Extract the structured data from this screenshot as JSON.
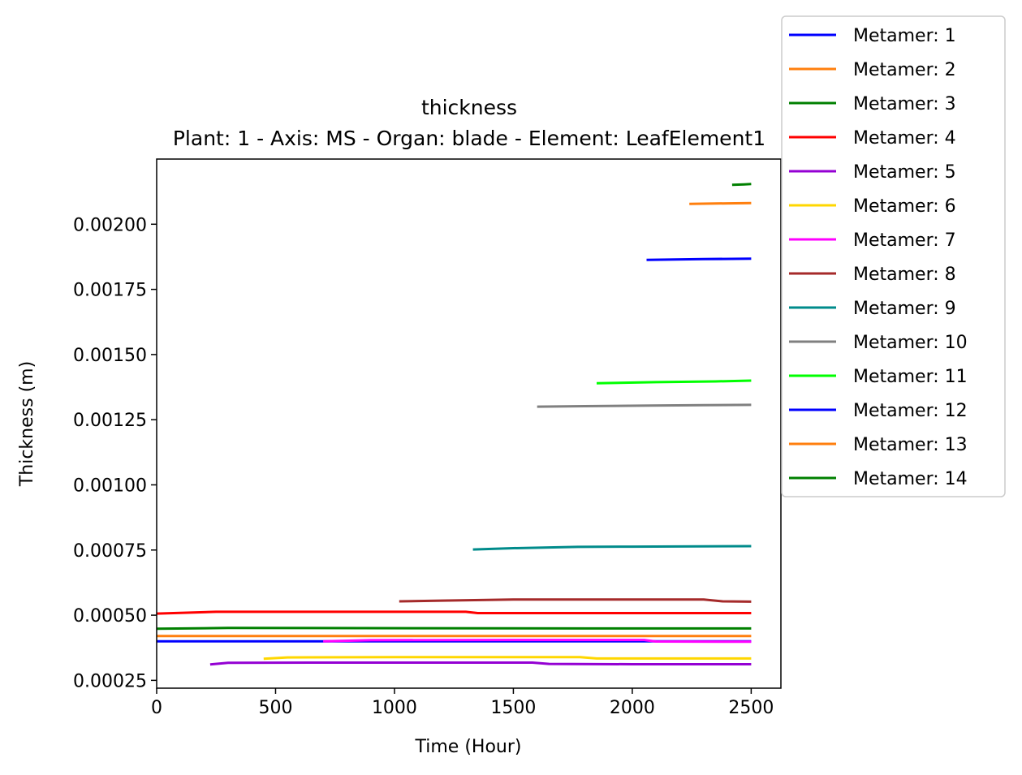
{
  "chart_data": {
    "type": "line",
    "title": "thickness",
    "subtitle": "Plant: 1 - Axis: MS - Organ: blade - Element: LeafElement1",
    "xlabel": "Time (Hour)",
    "ylabel": "Thickness (m)",
    "xlim": [
      0,
      2625
    ],
    "ylim": [
      0.00022,
      0.00225
    ],
    "xticks": [
      0,
      500,
      1000,
      1500,
      2000,
      2500
    ],
    "xtick_labels": [
      "0",
      "500",
      "1000",
      "1500",
      "2000",
      "2500"
    ],
    "yticks": [
      0.00025,
      0.0005,
      0.00075,
      0.001,
      0.00125,
      0.0015,
      0.00175,
      0.002
    ],
    "ytick_labels": [
      "0.00025",
      "0.00050",
      "0.00075",
      "0.00100",
      "0.00125",
      "0.00150",
      "0.00175",
      "0.00200"
    ],
    "grid": false,
    "legend": "outside-top-right",
    "series": [
      {
        "name": "Metamer: 1",
        "color": "#0000ff",
        "x": [
          0,
          700,
          1500,
          2000,
          2500
        ],
        "y": [
          0.0004,
          0.0004,
          0.0004,
          0.0004,
          0.0004
        ]
      },
      {
        "name": "Metamer: 2",
        "color": "#ff7f0e",
        "x": [
          0,
          700,
          1500,
          2000,
          2500
        ],
        "y": [
          0.00042,
          0.00042,
          0.00042,
          0.00042,
          0.00042
        ]
      },
      {
        "name": "Metamer: 3",
        "color": "#008000",
        "x": [
          0,
          300,
          1100,
          1800,
          2500
        ],
        "y": [
          0.000448,
          0.000451,
          0.00045,
          0.000449,
          0.000449
        ]
      },
      {
        "name": "Metamer: 4",
        "color": "#ff0000",
        "x": [
          0,
          250,
          500,
          1000,
          1300,
          1350,
          2000,
          2500
        ],
        "y": [
          0.000506,
          0.000513,
          0.000513,
          0.000513,
          0.000513,
          0.000508,
          0.000508,
          0.000508
        ]
      },
      {
        "name": "Metamer: 5",
        "color": "#9400d3",
        "x": [
          225,
          300,
          700,
          1500,
          1580,
          1650,
          2000,
          2500
        ],
        "y": [
          0.000311,
          0.000317,
          0.000318,
          0.000318,
          0.000318,
          0.000313,
          0.000312,
          0.000312
        ]
      },
      {
        "name": "Metamer: 6",
        "color": "#ffd700",
        "x": [
          450,
          550,
          1000,
          1700,
          1780,
          1850,
          2500
        ],
        "y": [
          0.000333,
          0.000338,
          0.000339,
          0.000339,
          0.000339,
          0.000334,
          0.000334
        ]
      },
      {
        "name": "Metamer: 7",
        "color": "#ff00ff",
        "x": [
          700,
          900,
          1500,
          2050,
          2100,
          2500
        ],
        "y": [
          0.0004,
          0.000404,
          0.000405,
          0.000405,
          0.000399,
          0.000398
        ]
      },
      {
        "name": "Metamer: 8",
        "color": "#a52a2a",
        "x": [
          1020,
          1200,
          1500,
          2000,
          2300,
          2380,
          2500
        ],
        "y": [
          0.000553,
          0.000556,
          0.00056,
          0.00056,
          0.00056,
          0.000553,
          0.000552
        ]
      },
      {
        "name": "Metamer: 9",
        "color": "#008b8b",
        "x": [
          1330,
          1500,
          1770,
          2000,
          2500
        ],
        "y": [
          0.000752,
          0.000757,
          0.000762,
          0.000763,
          0.000765
        ]
      },
      {
        "name": "Metamer: 10",
        "color": "#808080",
        "x": [
          1600,
          1800,
          2080,
          2300,
          2500
        ],
        "y": [
          0.0013,
          0.001302,
          0.001304,
          0.001306,
          0.001307
        ]
      },
      {
        "name": "Metamer: 11",
        "color": "#00ff00",
        "x": [
          1850,
          2100,
          2350,
          2500
        ],
        "y": [
          0.00139,
          0.001394,
          0.001397,
          0.0014
        ]
      },
      {
        "name": "Metamer: 12",
        "color": "#0000ff",
        "x": [
          2060,
          2300,
          2500
        ],
        "y": [
          0.001863,
          0.001866,
          0.001868
        ]
      },
      {
        "name": "Metamer: 13",
        "color": "#ff7f0e",
        "x": [
          2240,
          2400,
          2500
        ],
        "y": [
          0.002078,
          0.00208,
          0.002081
        ]
      },
      {
        "name": "Metamer: 14",
        "color": "#008000",
        "x": [
          2420,
          2470,
          2500
        ],
        "y": [
          0.002151,
          0.002153,
          0.002154
        ]
      }
    ]
  }
}
